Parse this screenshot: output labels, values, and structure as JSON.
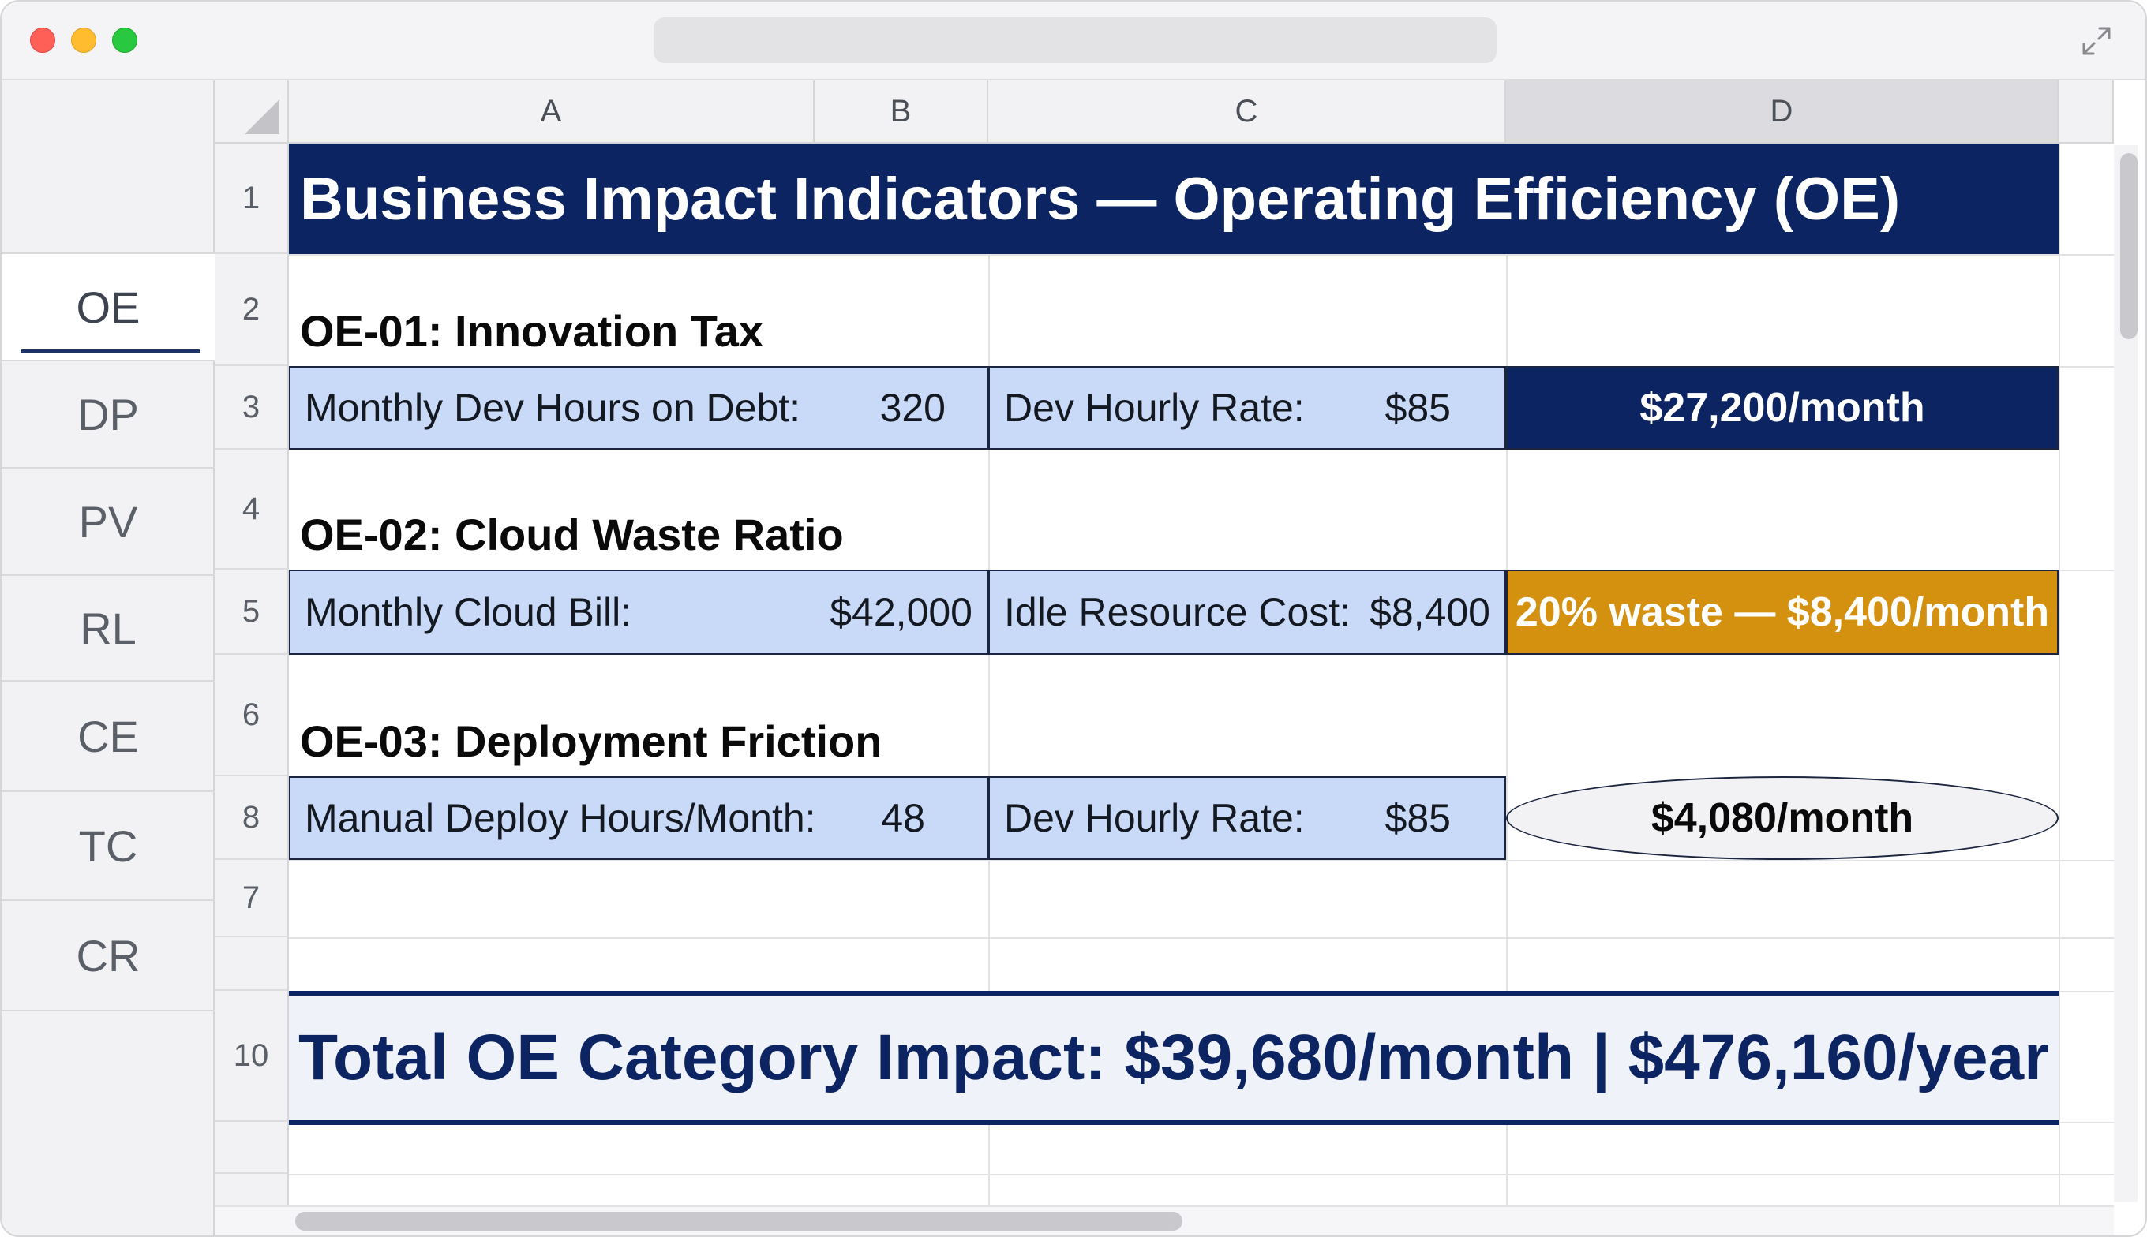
{
  "sheet_tabs": [
    {
      "label": "OE",
      "active": true
    },
    {
      "label": "DP",
      "active": false
    },
    {
      "label": "PV",
      "active": false
    },
    {
      "label": "RL",
      "active": false
    },
    {
      "label": "CE",
      "active": false
    },
    {
      "label": "TC",
      "active": false
    },
    {
      "label": "CR",
      "active": false
    }
  ],
  "columns": [
    "A",
    "B",
    "C",
    "D"
  ],
  "selected_column": "D",
  "rows": [
    "1",
    "2",
    "3",
    "4",
    "5",
    "6",
    "8",
    "7",
    "10"
  ],
  "title": "Business Impact Indicators — Operating Efficiency (OE)",
  "sections": [
    {
      "heading": "OE-01: Innovation Tax",
      "input1_label": "Monthly Dev Hours on Debt:",
      "input1_value": "320",
      "input2_label": "Dev Hourly Rate:",
      "input2_value": "$85",
      "result": "$27,200/month"
    },
    {
      "heading": "OE-02: Cloud Waste Ratio",
      "input1_label": "Monthly Cloud Bill:",
      "input1_value": "$42,000",
      "input2_label": "Idle Resource Cost:",
      "input2_value": "$8,400",
      "result": "20% waste — $8,400/month"
    },
    {
      "heading": "OE-03: Deployment Friction",
      "input1_label": "Manual Deploy Hours/Month:",
      "input1_value": "48",
      "input2_label": "Dev Hourly Rate:",
      "input2_value": "$85",
      "result": "$4,080/month"
    }
  ],
  "total": "Total OE Category Impact: $39,680/month | $476,160/year",
  "colors": {
    "navy": "#0c2461",
    "amber": "#d4900f",
    "input_fill": "#c8daf8"
  }
}
